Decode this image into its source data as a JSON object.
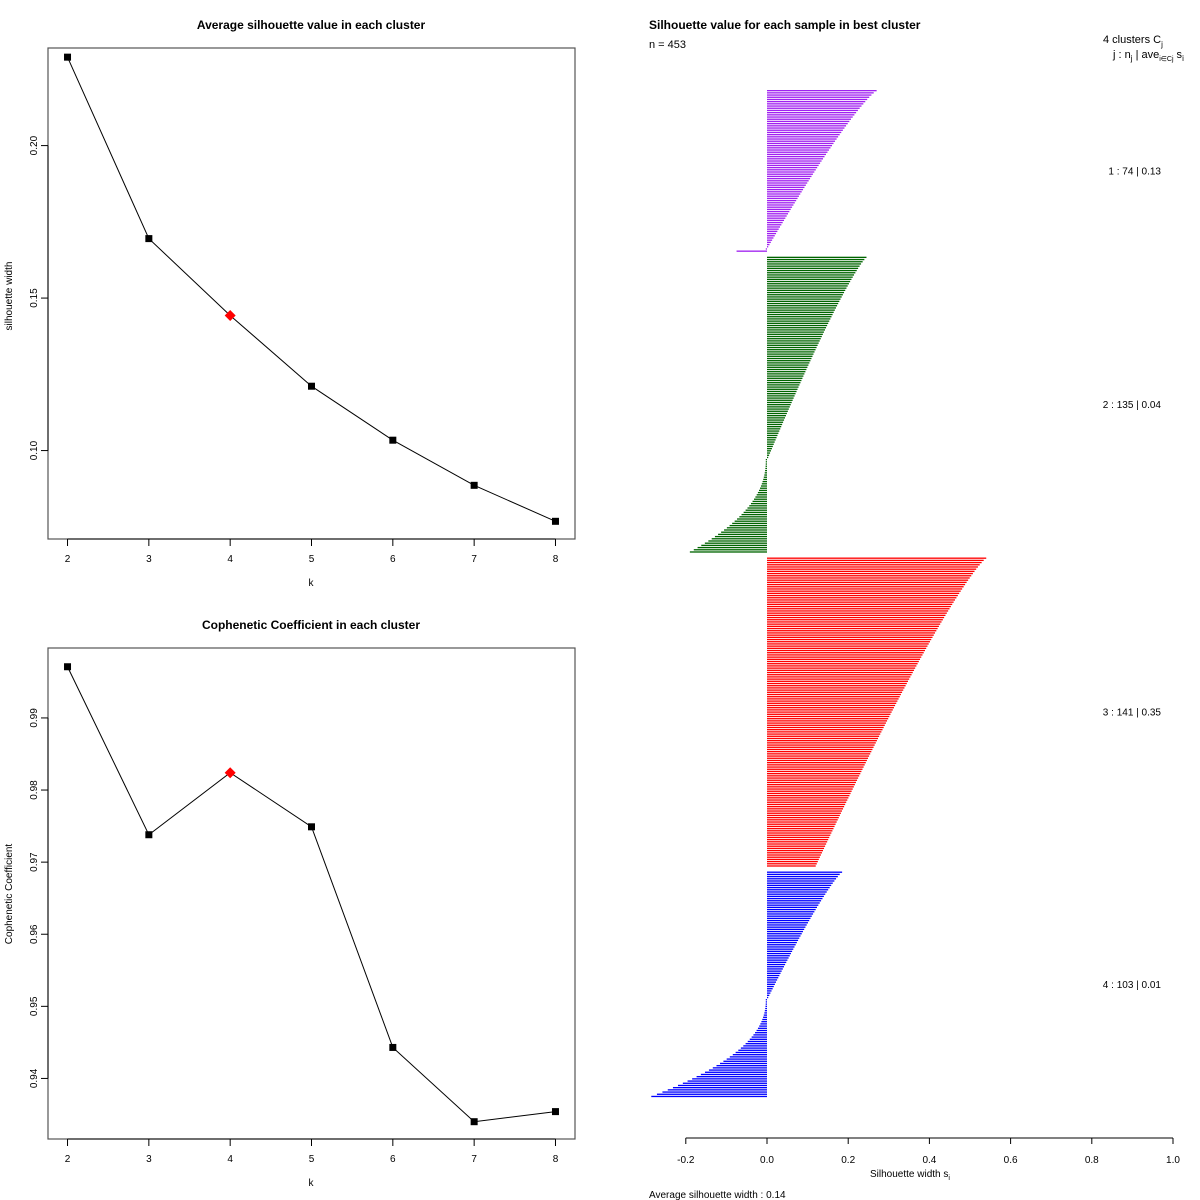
{
  "chart_data": [
    {
      "type": "line",
      "title": "Average silhouette value in each cluster",
      "xlabel": "k",
      "ylabel": "silhouette width",
      "x": [
        2,
        3,
        4,
        5,
        6,
        7,
        8
      ],
      "x_tick_labels": [
        "2",
        "3",
        "4",
        "5",
        "6",
        "7",
        "8"
      ],
      "y_ticks": [
        0.1,
        0.15,
        0.2
      ],
      "y_tick_labels": [
        "0.10",
        "0.15",
        "0.20"
      ],
      "ylim": [
        0.071,
        0.232
      ],
      "xlim": [
        1.76,
        8.24
      ],
      "series": [
        {
          "name": "silhouette width",
          "values": [
            0.229,
            0.1695,
            0.1443,
            0.1211,
            0.1034,
            0.0886,
            0.0768
          ]
        }
      ],
      "highlight": {
        "k": 4,
        "value": 0.1443,
        "color": "#ff0000",
        "marker": "diamond"
      },
      "marker_color": "#000000",
      "grid": false
    },
    {
      "type": "line",
      "title": "Cophenetic Coefficient in each cluster",
      "xlabel": "k",
      "ylabel": "Cophenetic Coefficient",
      "x": [
        2,
        3,
        4,
        5,
        6,
        7,
        8
      ],
      "x_tick_labels": [
        "2",
        "3",
        "4",
        "5",
        "6",
        "7",
        "8"
      ],
      "y_ticks": [
        0.94,
        0.95,
        0.96,
        0.97,
        0.98,
        0.99
      ],
      "y_tick_labels": [
        "0.94",
        "0.95",
        "0.96",
        "0.97",
        "0.98",
        "0.99"
      ],
      "ylim": [
        0.9316,
        0.9997
      ],
      "xlim": [
        1.76,
        8.24
      ],
      "series": [
        {
          "name": "Cophenetic Coefficient",
          "values": [
            0.9971,
            0.9738,
            0.9824,
            0.9749,
            0.9443,
            0.934,
            0.9354
          ]
        }
      ],
      "highlight": {
        "k": 4,
        "value": 0.9824,
        "color": "#ff0000",
        "marker": "diamond"
      },
      "marker_color": "#000000",
      "grid": false
    },
    {
      "type": "bar",
      "orientation": "horizontal",
      "title": "Silhouette value for each sample in best cluster",
      "subtitle": "n = 453",
      "xlabel": "Silhouette width s",
      "xlabel_sub": "i",
      "xlim": [
        -0.2,
        1.0
      ],
      "x_ticks": [
        -0.2,
        0.0,
        0.2,
        0.4,
        0.6,
        0.8,
        1.0
      ],
      "x_tick_labels": [
        "-0.2",
        "0.0",
        "0.2",
        "0.4",
        "0.6",
        "0.8",
        "1.0"
      ],
      "legend_header": "4  clusters  C",
      "legend_header_sub": "j",
      "legend_subheader": "j :  n",
      "legend_subheader_rest": " | ave",
      "legend_subheader_sub2": "i∈Cj",
      "legend_subheader_tail": " s",
      "legend_subheader_tail_sub": "i",
      "footer": "Average silhouette width :  0.14",
      "average_width": 0.14,
      "clusters": [
        {
          "id": 1,
          "size": 74,
          "avg": 0.13,
          "color": "#a020f0",
          "label": "1 :   74  |  0.13",
          "max": 0.27,
          "min": -0.075,
          "neg_count": 2
        },
        {
          "id": 2,
          "size": 135,
          "avg": 0.04,
          "color": "#006400",
          "label": "2 :   135  |  0.04",
          "max": 0.245,
          "min": -0.19,
          "neg_count": 43
        },
        {
          "id": 3,
          "size": 141,
          "avg": 0.35,
          "color": "#ff0000",
          "label": "3 :   141  |  0.35",
          "max": 0.54,
          "min": 0.12,
          "neg_count": 0
        },
        {
          "id": 4,
          "size": 103,
          "avg": 0.01,
          "color": "#0000ff",
          "label": "4 :   103  |  0.01",
          "max": 0.185,
          "min": -0.285,
          "neg_count": 45
        }
      ]
    }
  ]
}
